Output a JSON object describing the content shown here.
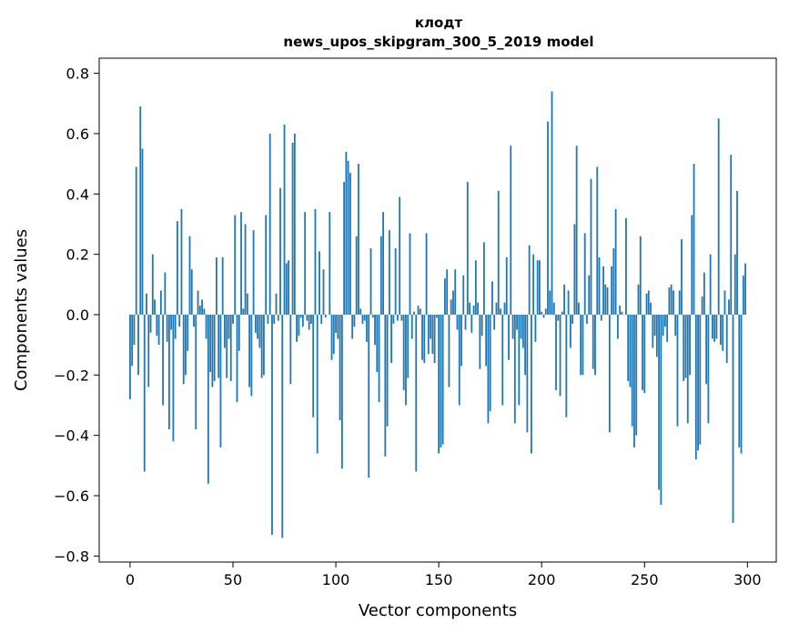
{
  "chart_data": {
    "type": "bar",
    "title_line1": "клодт",
    "title_line2": "news_upos_skipgram_300_5_2019 model",
    "xlabel": "Vector components",
    "ylabel": "Components values",
    "xlim": [
      -15,
      314
    ],
    "ylim": [
      -0.82,
      0.85
    ],
    "xticks": [
      0,
      50,
      100,
      150,
      200,
      250,
      300
    ],
    "xtick_labels": [
      "0",
      "50",
      "100",
      "150",
      "200",
      "250",
      "300"
    ],
    "yticks": [
      -0.8,
      -0.6,
      -0.4,
      -0.2,
      0.0,
      0.2,
      0.4,
      0.6,
      0.8
    ],
    "ytick_labels": [
      "−0.8",
      "−0.6",
      "−0.4",
      "−0.2",
      "0.0",
      "0.2",
      "0.4",
      "0.6",
      "0.8"
    ],
    "bar_color": "#1f77b4",
    "grid": false,
    "values": [
      -0.28,
      -0.17,
      -0.1,
      0.49,
      -0.2,
      0.69,
      0.55,
      -0.52,
      0.07,
      -0.24,
      -0.06,
      0.2,
      0.05,
      -0.07,
      -0.1,
      0.08,
      -0.3,
      0.14,
      -0.09,
      -0.38,
      -0.05,
      -0.42,
      -0.08,
      0.31,
      -0.04,
      0.35,
      -0.23,
      -0.2,
      -0.12,
      0.26,
      0.15,
      -0.04,
      -0.38,
      0.08,
      0.03,
      0.05,
      0.02,
      -0.08,
      -0.56,
      -0.19,
      -0.24,
      -0.22,
      0.19,
      -0.21,
      -0.44,
      0.19,
      -0.11,
      -0.21,
      -0.08,
      -0.22,
      -0.03,
      0.33,
      -0.29,
      -0.12,
      0.34,
      0.02,
      0.3,
      0.07,
      -0.24,
      -0.27,
      0.28,
      -0.06,
      -0.08,
      -0.11,
      -0.21,
      -0.2,
      0.33,
      -0.03,
      0.6,
      -0.73,
      -0.03,
      0.07,
      -0.02,
      0.42,
      -0.74,
      0.63,
      0.17,
      0.18,
      -0.23,
      0.57,
      0.6,
      -0.09,
      -0.07,
      -0.01,
      -0.04,
      0.34,
      -0.02,
      -0.05,
      -0.03,
      -0.34,
      0.35,
      -0.46,
      0.21,
      -0.03,
      0.15,
      -0.01,
      0.0,
      0.34,
      -0.15,
      -0.13,
      -0.06,
      -0.08,
      -0.35,
      -0.51,
      0.44,
      0.54,
      0.51,
      0.47,
      -0.08,
      -0.04,
      0.26,
      0.5,
      0.02,
      -0.03,
      -0.02,
      -0.09,
      -0.54,
      0.22,
      -0.01,
      -0.1,
      -0.19,
      -0.29,
      0.26,
      0.34,
      -0.47,
      -0.37,
      0.28,
      -0.16,
      -0.03,
      0.22,
      -0.02,
      0.39,
      -0.02,
      -0.25,
      -0.3,
      -0.21,
      0.27,
      -0.08,
      0.01,
      -0.52,
      0.03,
      0.02,
      -0.15,
      -0.16,
      0.27,
      -0.13,
      -0.08,
      -0.13,
      -0.16,
      -0.01,
      -0.46,
      -0.44,
      -0.43,
      0.12,
      0.15,
      -0.24,
      0.05,
      0.08,
      0.15,
      -0.05,
      -0.3,
      -0.17,
      0.13,
      -0.05,
      0.44,
      0.04,
      -0.06,
      0.03,
      0.18,
      0.04,
      -0.18,
      -0.07,
      0.24,
      -0.17,
      -0.36,
      -0.32,
      0.11,
      -0.05,
      0.04,
      0.41,
      0.02,
      -0.3,
      0.04,
      0.19,
      -0.15,
      0.56,
      -0.08,
      -0.36,
      -0.05,
      -0.3,
      -0.08,
      -0.11,
      -0.2,
      -0.39,
      0.23,
      -0.46,
      0.2,
      -0.09,
      0.18,
      0.18,
      0.01,
      -0.01,
      0.02,
      0.64,
      0.08,
      0.74,
      0.04,
      -0.25,
      -0.02,
      -0.27,
      0.01,
      0.1,
      -0.34,
      0.08,
      -0.11,
      -0.03,
      0.3,
      0.56,
      0.04,
      -0.2,
      -0.2,
      0.27,
      -0.03,
      0.13,
      0.45,
      -0.18,
      -0.2,
      0.49,
      0.19,
      -0.02,
      0.16,
      0.1,
      0.09,
      -0.39,
      0.16,
      0.22,
      0.35,
      -0.08,
      0.03,
      0.01,
      0.0,
      0.32,
      -0.22,
      -0.24,
      -0.37,
      -0.44,
      -0.4,
      0.1,
      0.26,
      -0.25,
      -0.26,
      0.07,
      0.08,
      0.04,
      -0.11,
      -0.07,
      -0.14,
      -0.58,
      -0.63,
      -0.07,
      -0.04,
      -0.09,
      0.09,
      0.1,
      0.08,
      -0.07,
      -0.37,
      0.08,
      0.25,
      -0.22,
      -0.21,
      -0.36,
      -0.2,
      0.33,
      0.5,
      -0.48,
      -0.45,
      -0.43,
      0.06,
      0.14,
      -0.23,
      -0.36,
      0.2,
      -0.08,
      -0.09,
      -0.08,
      0.65,
      -0.1,
      -0.12,
      0.08,
      -0.16,
      0.05,
      0.53,
      -0.69,
      0.2,
      0.41,
      -0.44,
      -0.46,
      0.13,
      0.17
    ]
  }
}
